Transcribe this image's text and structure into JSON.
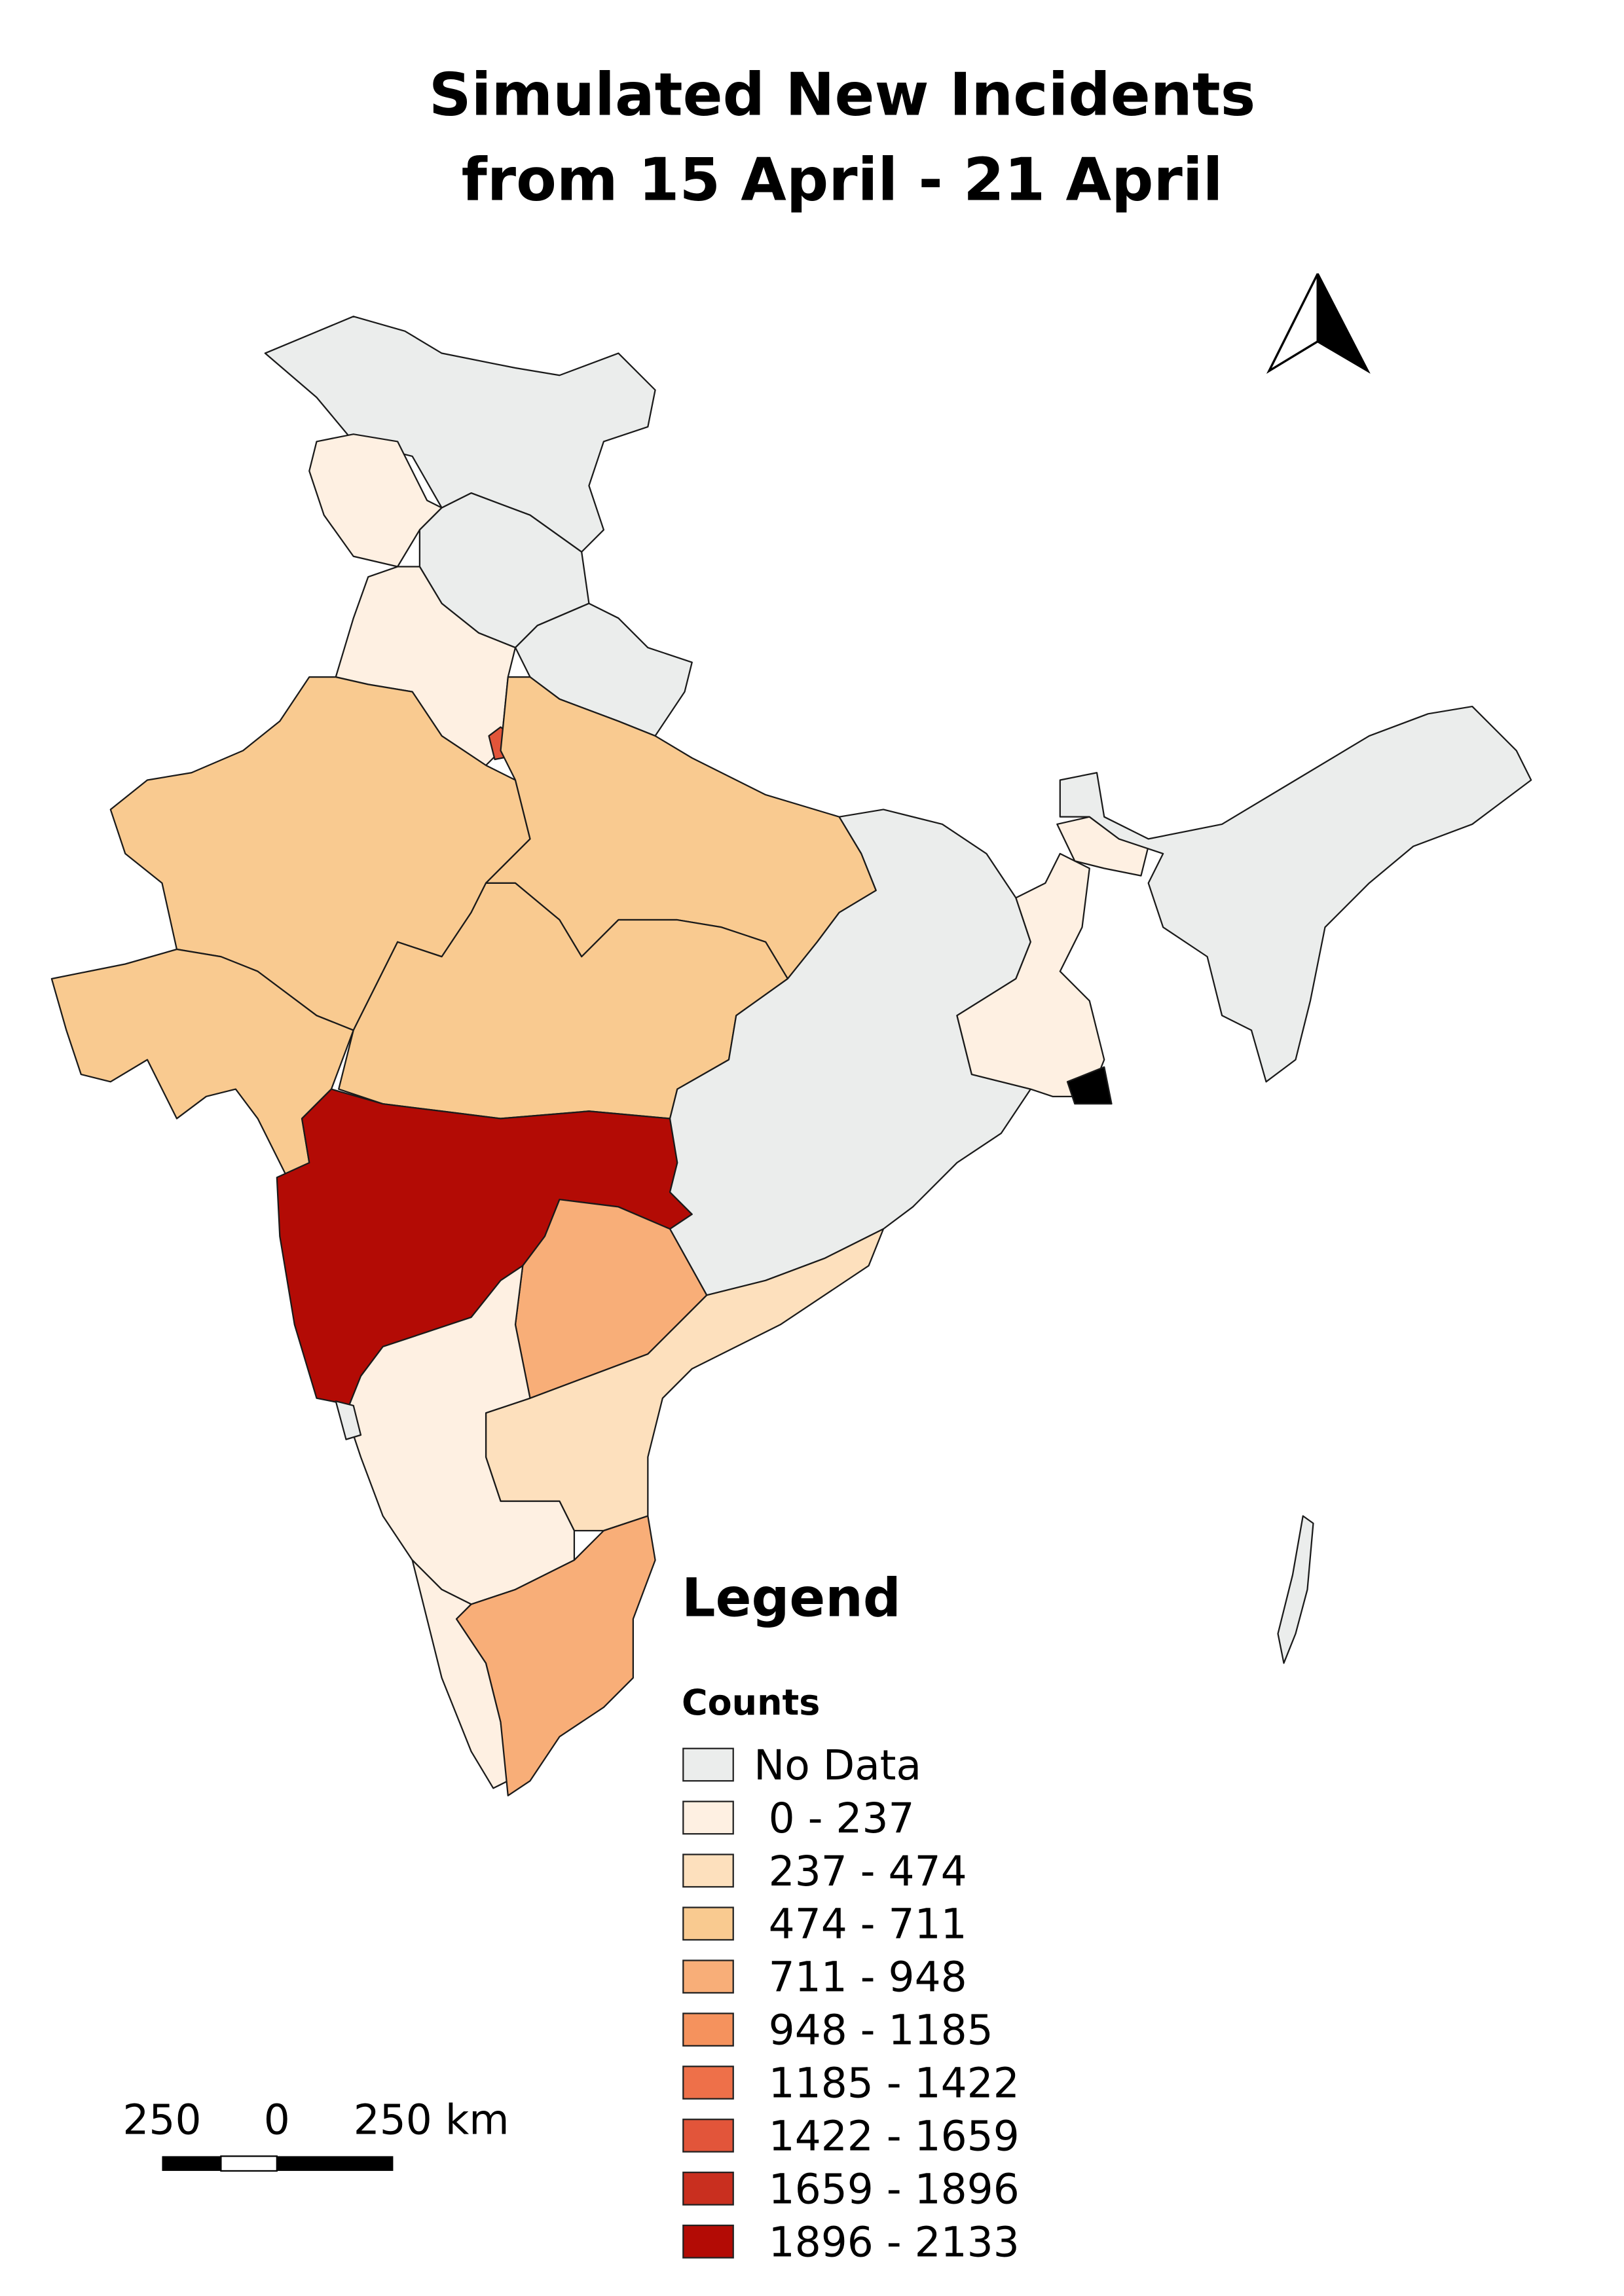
{
  "title": [
    "Simulated New Incidents",
    "from 15 April - 21 April"
  ],
  "legend": {
    "title": "Legend",
    "subtitle": "Counts",
    "items": [
      {
        "label": "No Data",
        "color": "#ebedec"
      },
      {
        "label": "0 - 237",
        "color": "#fef0e2"
      },
      {
        "label": "237 - 474",
        "color": "#fde0bd"
      },
      {
        "label": "474 - 711",
        "color": "#f9ca90"
      },
      {
        "label": "711 - 948",
        "color": "#f8ae78"
      },
      {
        "label": "948 - 1185",
        "color": "#f5925d"
      },
      {
        "label": "1185 - 1422",
        "color": "#ee7049"
      },
      {
        "label": "1422 - 1659",
        "color": "#e2553a"
      },
      {
        "label": "1659 - 1896",
        "color": "#c92f1f"
      },
      {
        "label": "1896 - 2133",
        "color": "#b30b05"
      }
    ]
  },
  "scale_bar": {
    "labels": [
      "250",
      "0",
      "250 km"
    ]
  }
}
